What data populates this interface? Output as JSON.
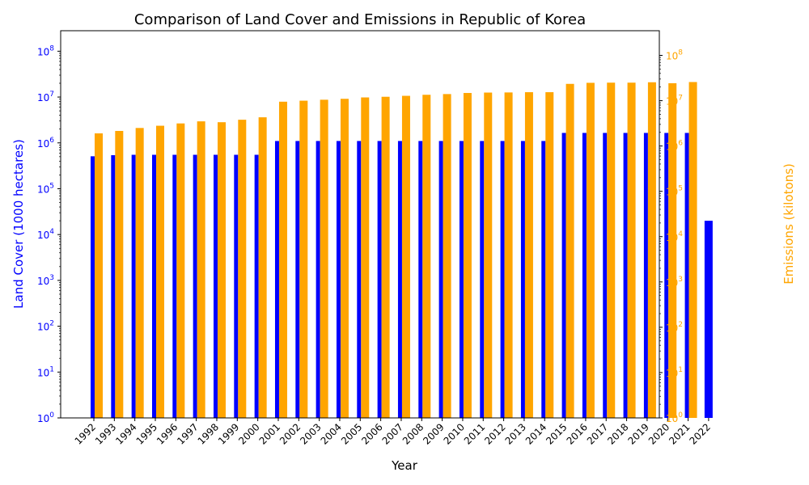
{
  "chart_data": {
    "type": "bar",
    "title": "Comparison of Land Cover and Emissions in Republic of Korea",
    "xlabel": "Year",
    "ylabel_left": "Land Cover (1000 hectares)",
    "ylabel_right": "Emissions (kilotons)",
    "yscale": "log",
    "ylim_left": [
      1,
      280000000
    ],
    "ylim_right": [
      1,
      350000000
    ],
    "categories": [
      "1992",
      "1993",
      "1994",
      "1995",
      "1996",
      "1997",
      "1998",
      "1999",
      "2000",
      "2001",
      "2002",
      "2003",
      "2004",
      "2005",
      "2006",
      "2007",
      "2008",
      "2009",
      "2010",
      "2011",
      "2012",
      "2013",
      "2014",
      "2015",
      "2016",
      "2017",
      "2018",
      "2019",
      "2020",
      "2021",
      "2022"
    ],
    "series": [
      {
        "name": "Land Cover",
        "axis": "left",
        "color": "#0000ff",
        "values": [
          510000,
          540000,
          550000,
          550000,
          550000,
          550000,
          550000,
          550000,
          550000,
          1100000,
          1100000,
          1100000,
          1100000,
          1100000,
          1100000,
          1100000,
          1100000,
          1100000,
          1100000,
          1100000,
          1100000,
          1100000,
          1100000,
          1650000,
          1650000,
          1650000,
          1650000,
          1650000,
          1650000,
          1650000,
          20000
        ]
      },
      {
        "name": "Emissions",
        "axis": "right",
        "color": "#ffa500",
        "values": [
          1900000,
          2150000,
          2500000,
          2800000,
          3150000,
          3500000,
          3350000,
          3800000,
          4300000,
          9500000,
          10000000,
          10500000,
          11000000,
          11800000,
          12200000,
          12800000,
          13500000,
          14000000,
          14800000,
          15100000,
          15200000,
          15400000,
          15400000,
          23500000,
          24800000,
          25000000,
          25000000,
          25500000,
          24300000,
          25800000,
          null
        ]
      }
    ],
    "ticks_left": [
      "10^0",
      "10^1",
      "10^2",
      "10^3",
      "10^4",
      "10^5",
      "10^6",
      "10^7",
      "10^8"
    ],
    "ticks_right": [
      "10^0",
      "10^1",
      "10^2",
      "10^3",
      "10^4",
      "10^5",
      "10^6",
      "10^7",
      "10^8"
    ],
    "left_axis_color": "#0000ff",
    "right_axis_color": "#ffa500"
  }
}
